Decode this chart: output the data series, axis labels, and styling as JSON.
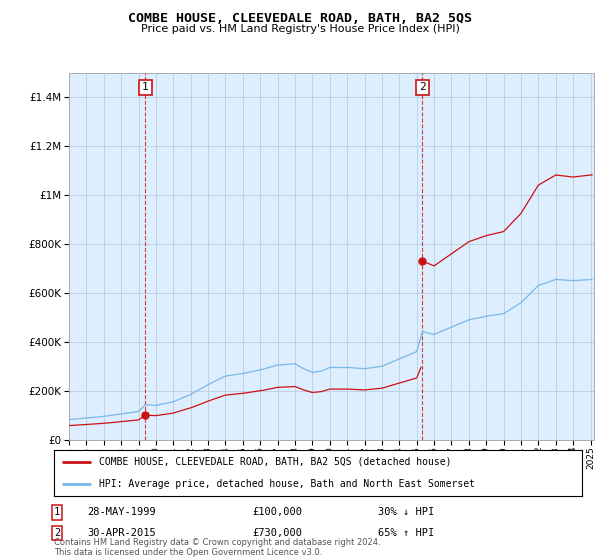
{
  "title": "COMBE HOUSE, CLEEVEDALE ROAD, BATH, BA2 5QS",
  "subtitle": "Price paid vs. HM Land Registry's House Price Index (HPI)",
  "legend_line1": "COMBE HOUSE, CLEEVEDALE ROAD, BATH, BA2 5QS (detached house)",
  "legend_line2": "HPI: Average price, detached house, Bath and North East Somerset",
  "purchase1": {
    "label": "1",
    "date": "28-MAY-1999",
    "price": 100000,
    "pct": "30% ↓ HPI",
    "year": 1999.4
  },
  "purchase2": {
    "label": "2",
    "date": "30-APR-2015",
    "price": 730000,
    "pct": "65% ↑ HPI",
    "year": 2015.33
  },
  "footnote": "Contains HM Land Registry data © Crown copyright and database right 2024.\nThis data is licensed under the Open Government Licence v3.0.",
  "ylim": [
    0,
    1500000
  ],
  "yticks": [
    0,
    200000,
    400000,
    600000,
    800000,
    1000000,
    1200000,
    1400000
  ],
  "hpi_color": "#7ab8e8",
  "price_color": "#cc1111",
  "dashed_color": "#cc1111",
  "bg_color": "#ffffff",
  "chart_bg": "#ddeeff",
  "grid_color": "#bbccdd",
  "fig_width": 6.0,
  "fig_height": 5.6,
  "dpi": 100
}
